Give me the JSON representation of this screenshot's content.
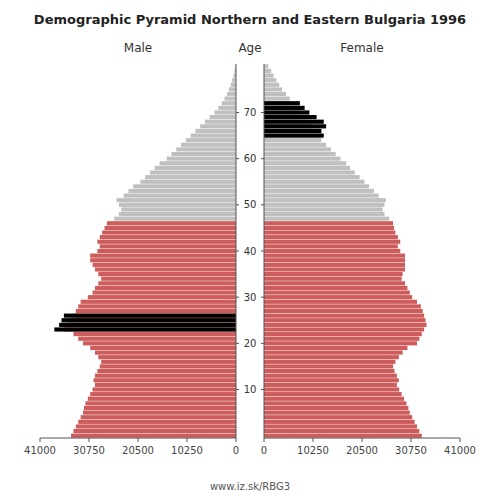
{
  "chart_data": {
    "type": "pyramid",
    "orientation": "horizontal",
    "title": "Demographic Pyramid Northern and Eastern Bulgaria 1996",
    "ylabel": "Age",
    "annotations": [
      "www.iz.sk/RBG3"
    ],
    "grid": false,
    "xlim": [
      0,
      41000
    ],
    "xticks": [
      0,
      10250,
      20500,
      30750,
      41000
    ],
    "ylim": [
      -0.5,
      80.5
    ],
    "yticks": [
      10,
      20,
      30,
      40,
      50,
      60,
      70
    ],
    "categories": [
      0,
      1,
      2,
      3,
      4,
      5,
      6,
      7,
      8,
      9,
      10,
      11,
      12,
      13,
      14,
      15,
      16,
      17,
      18,
      19,
      20,
      21,
      22,
      23,
      24,
      25,
      26,
      27,
      28,
      29,
      30,
      31,
      32,
      33,
      34,
      35,
      36,
      37,
      38,
      39,
      40,
      41,
      42,
      43,
      44,
      45,
      46,
      47,
      48,
      49,
      50,
      51,
      52,
      53,
      54,
      55,
      56,
      57,
      58,
      59,
      60,
      61,
      62,
      63,
      64,
      65,
      66,
      67,
      68,
      69,
      70,
      71,
      72,
      73,
      74,
      75,
      76,
      77,
      78,
      79,
      80
    ],
    "series": [
      {
        "name": "Male",
        "values": [
          34500,
          34000,
          33500,
          33000,
          32500,
          32000,
          31800,
          31500,
          31000,
          30500,
          30000,
          29500,
          29800,
          29500,
          29000,
          28500,
          28200,
          28800,
          29500,
          30500,
          32000,
          33000,
          34000,
          36000,
          35500,
          35000,
          34000,
          33500,
          33000,
          32500,
          31000,
          30000,
          29500,
          28800,
          28200,
          28800,
          29500,
          30000,
          30500,
          30500,
          29000,
          28500,
          29000,
          28500,
          28000,
          27500,
          27000,
          25500,
          24500,
          24000,
          24500,
          25000,
          23500,
          22500,
          21500,
          20000,
          19000,
          18000,
          17000,
          16000,
          14500,
          13500,
          12500,
          11500,
          10500,
          9500,
          8500,
          7500,
          6500,
          5500,
          4500,
          3700,
          3000,
          2400,
          1900,
          1500,
          1100,
          800,
          550,
          350,
          150
        ],
        "colors": [
          "#CD5C5C",
          "#CD5C5C",
          "#CD5C5C",
          "#CD5C5C",
          "#CD5C5C",
          "#CD5C5C",
          "#CD5C5C",
          "#CD5C5C",
          "#CD5C5C",
          "#CD5C5C",
          "#CD5C5C",
          "#CD5C5C",
          "#CD5C5C",
          "#CD5C5C",
          "#CD5C5C",
          "#CD5C5C",
          "#CD5C5C",
          "#CD5C5C",
          "#CD5C5C",
          "#CD5C5C",
          "#CD5C5C",
          "#CD5C5C",
          "#CD5C5C",
          "#CD5C5C",
          "#CD5C5C",
          "#CD5C5C",
          "#CD5C5C",
          "#CD5C5C",
          "#CD5C5C",
          "#CD5C5C",
          "#CD5C5C",
          "#CD5C5C",
          "#CD5C5C",
          "#CD5C5C",
          "#CD5C5C",
          "#CD5C5C",
          "#CD5C5C",
          "#CD5C5C",
          "#CD5C5C",
          "#CD5C5C",
          "#CD5C5C",
          "#CD5C5C",
          "#CD5C5C",
          "#CD5C5C",
          "#CD5C5C",
          "#CD5C5C",
          "#CD5C5C",
          "#C0C0C0",
          "#C0C0C0",
          "#C0C0C0",
          "#C0C0C0",
          "#C0C0C0",
          "#C0C0C0",
          "#C0C0C0",
          "#C0C0C0",
          "#C0C0C0",
          "#C0C0C0",
          "#C0C0C0",
          "#C0C0C0",
          "#C0C0C0",
          "#C0C0C0",
          "#C0C0C0",
          "#C0C0C0",
          "#C0C0C0",
          "#C0C0C0",
          "#C0C0C0",
          "#C0C0C0",
          "#C0C0C0",
          "#C0C0C0",
          "#C0C0C0",
          "#C0C0C0",
          "#C0C0C0",
          "#C0C0C0",
          "#C0C0C0",
          "#C0C0C0",
          "#C0C0C0",
          "#C0C0C0",
          "#C0C0C0",
          "#C0C0C0",
          "#C0C0C0",
          "#C0C0C0"
        ],
        "overlay": {
          "categories": [
            23,
            24,
            25,
            26
          ],
          "values": [
            38000,
            37000,
            36500,
            36000
          ],
          "color": "#000000"
        }
      },
      {
        "name": "Female",
        "values": [
          33000,
          32500,
          32000,
          31500,
          31000,
          30500,
          30200,
          29800,
          29300,
          28800,
          28300,
          27800,
          28200,
          27800,
          27300,
          27000,
          27500,
          28200,
          29000,
          30000,
          32000,
          32500,
          33000,
          33500,
          34000,
          33800,
          33500,
          33200,
          32800,
          32000,
          31000,
          30500,
          30000,
          29500,
          28800,
          29000,
          29500,
          29500,
          29500,
          29500,
          28500,
          28000,
          28500,
          28000,
          27500,
          27200,
          27000,
          26200,
          25200,
          24800,
          25200,
          25500,
          24000,
          23000,
          22000,
          21000,
          20000,
          19000,
          18000,
          17200,
          16000,
          15000,
          14000,
          13000,
          12000,
          11500,
          11000,
          10000,
          9000,
          8300,
          7500,
          7000,
          6200,
          5400,
          4600,
          3800,
          3200,
          2600,
          2000,
          1500,
          900
        ],
        "colors": [
          "#CD5C5C",
          "#CD5C5C",
          "#CD5C5C",
          "#CD5C5C",
          "#CD5C5C",
          "#CD5C5C",
          "#CD5C5C",
          "#CD5C5C",
          "#CD5C5C",
          "#CD5C5C",
          "#CD5C5C",
          "#CD5C5C",
          "#CD5C5C",
          "#CD5C5C",
          "#CD5C5C",
          "#CD5C5C",
          "#CD5C5C",
          "#CD5C5C",
          "#CD5C5C",
          "#CD5C5C",
          "#CD5C5C",
          "#CD5C5C",
          "#CD5C5C",
          "#CD5C5C",
          "#CD5C5C",
          "#CD5C5C",
          "#CD5C5C",
          "#CD5C5C",
          "#CD5C5C",
          "#CD5C5C",
          "#CD5C5C",
          "#CD5C5C",
          "#CD5C5C",
          "#CD5C5C",
          "#CD5C5C",
          "#CD5C5C",
          "#CD5C5C",
          "#CD5C5C",
          "#CD5C5C",
          "#CD5C5C",
          "#CD5C5C",
          "#CD5C5C",
          "#CD5C5C",
          "#CD5C5C",
          "#CD5C5C",
          "#CD5C5C",
          "#CD5C5C",
          "#C0C0C0",
          "#C0C0C0",
          "#C0C0C0",
          "#C0C0C0",
          "#C0C0C0",
          "#C0C0C0",
          "#C0C0C0",
          "#C0C0C0",
          "#C0C0C0",
          "#C0C0C0",
          "#C0C0C0",
          "#C0C0C0",
          "#C0C0C0",
          "#C0C0C0",
          "#C0C0C0",
          "#C0C0C0",
          "#C0C0C0",
          "#C0C0C0",
          "#C0C0C0",
          "#C0C0C0",
          "#C0C0C0",
          "#C0C0C0",
          "#C0C0C0",
          "#C0C0C0",
          "#C0C0C0",
          "#C0C0C0",
          "#C0C0C0",
          "#C0C0C0",
          "#C0C0C0",
          "#C0C0C0",
          "#C0C0C0",
          "#C0C0C0",
          "#C0C0C0",
          "#C0C0C0"
        ],
        "overlay": {
          "categories": [
            65,
            66,
            67,
            68,
            69,
            70,
            71,
            72
          ],
          "values": [
            12500,
            12000,
            13000,
            12500,
            11000,
            9500,
            8500,
            7500
          ],
          "color": "#000000"
        }
      }
    ]
  }
}
